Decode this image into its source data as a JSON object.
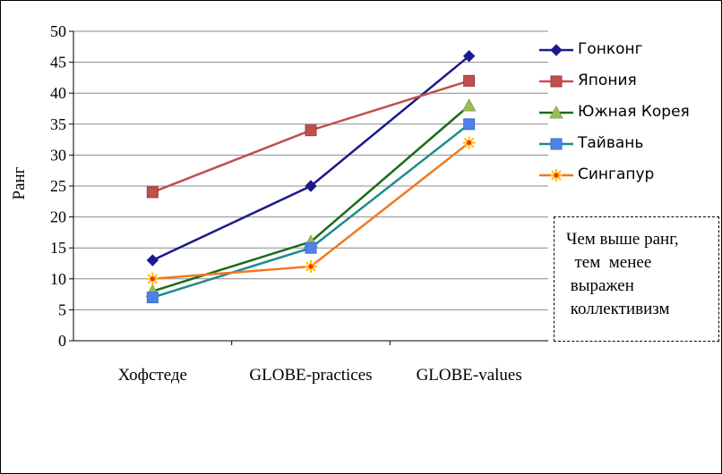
{
  "chart_data": {
    "type": "line",
    "ylabel": "Ранг",
    "ylim": [
      0,
      50
    ],
    "yticks": [
      "0",
      "5",
      "10",
      "15",
      "20",
      "25",
      "30",
      "35",
      "40",
      "45",
      "50"
    ],
    "categories": [
      "Хофстеде",
      "GLOBE-practices",
      "GLOBE-values"
    ],
    "grid": true,
    "legend_position": "right",
    "series": [
      {
        "name": "Гонконг",
        "values": [
          13,
          25,
          46
        ],
        "color": "#1a1a8c",
        "marker": "diamond"
      },
      {
        "name": "Япония",
        "values": [
          24,
          34,
          42
        ],
        "color": "#c0504d",
        "marker": "square"
      },
      {
        "name": "Южная Корея",
        "values": [
          8,
          16,
          38
        ],
        "color": "#1a6b1a",
        "marker": "triangle"
      },
      {
        "name": "Тайвань",
        "values": [
          7,
          15,
          35
        ],
        "color": "#1f8a8a",
        "marker": "square-blue"
      },
      {
        "name": "Сингапур",
        "values": [
          10,
          12,
          32
        ],
        "color": "#f07820",
        "marker": "star"
      }
    ]
  },
  "note": "Чем выше ранг,\n  тем  менее\n выражен\n коллективизм"
}
